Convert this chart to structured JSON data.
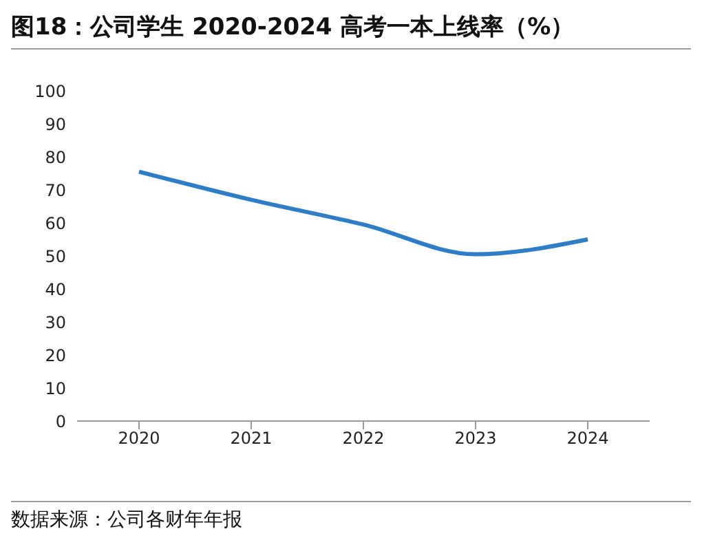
{
  "chart_data": {
    "type": "line",
    "title": "图18：公司学生 2020-2024 高考一本上线率（%）",
    "categories": [
      "2020",
      "2021",
      "2022",
      "2023",
      "2024"
    ],
    "series": [
      {
        "color": "#2e7dc6",
        "values": [
          75.5,
          67,
          59.5,
          50.5,
          55
        ]
      }
    ],
    "ylim": [
      0,
      100
    ],
    "yticks": [
      0,
      10,
      20,
      30,
      40,
      50,
      60,
      70,
      80,
      90,
      100
    ],
    "grid": false,
    "legend": false,
    "marker": "none",
    "line_style": "solid",
    "annotations": [
      "数据来源：公司各财年年报"
    ]
  }
}
